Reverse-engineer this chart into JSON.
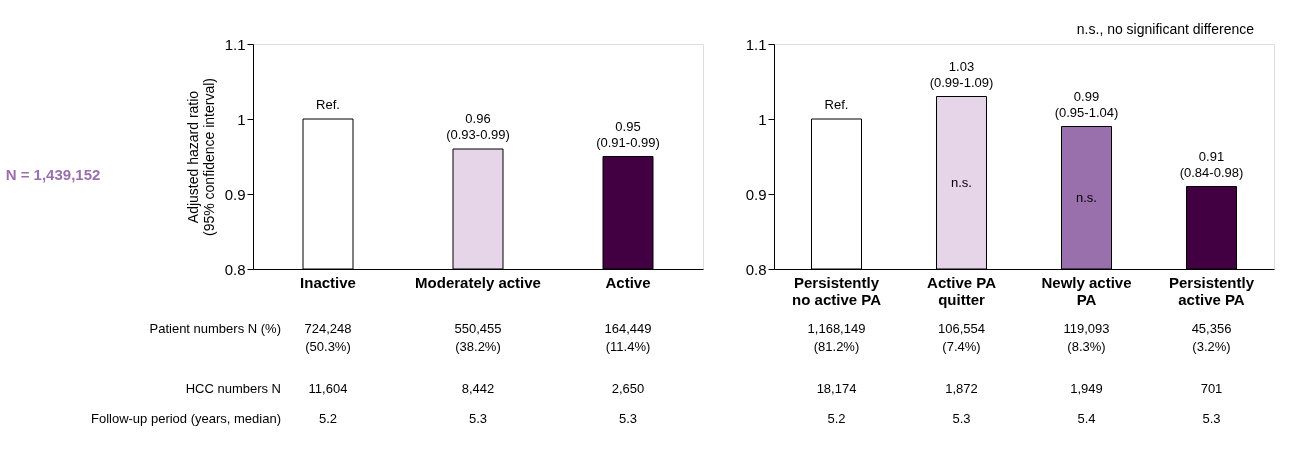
{
  "chart_data": [
    {
      "type": "bar",
      "ylabel": "Adjusted hazard ratio\n(95% confidence interval)",
      "categories": [
        "Inactive",
        "Moderately active",
        "Active"
      ],
      "values": [
        1,
        0.96,
        0.95
      ],
      "colors": [
        "#ffffff",
        "#e6d4e9",
        "#420042"
      ],
      "value_labels": [
        "Ref.",
        "0.96\n(0.93-0.99)",
        "0.95\n(0.91-0.99)"
      ],
      "ylim": [
        0.8,
        1.1
      ],
      "yticks": [
        0.8,
        0.9,
        1,
        1.1
      ],
      "grid": false,
      "annotations": [
        "N = 1,439,152",
        "Patient numbers N (%)",
        "HCC numbers N",
        "Follow-up period (years, median)",
        "724,248\n(50.3%)",
        "550,455\n(38.2%)",
        "164,449\n(11.4%)",
        "11,604",
        "8,442",
        "2,650",
        "5.2",
        "5.3",
        "5.3"
      ]
    },
    {
      "type": "bar",
      "categories": [
        "Persistently\nno active PA",
        "Active PA\nquitter",
        "Newly active\nPA",
        "Persistently\nactive PA"
      ],
      "values": [
        1,
        1.03,
        0.99,
        0.91
      ],
      "colors": [
        "#ffffff",
        "#e6d4e9",
        "#9a70ac",
        "#420042"
      ],
      "value_labels": [
        "Ref.",
        "1.03\n(0.99-1.09)",
        "0.99\n(0.95-1.04)",
        "0.91\n(0.84-0.98)"
      ],
      "ylim": [
        0.8,
        1.1
      ],
      "yticks": [
        0.8,
        0.9,
        1,
        1.1
      ],
      "grid": false,
      "annotations": [
        "n.s., no significant difference",
        "n.s.",
        "n.s.",
        "1,168,149\n(81.2%)",
        "106,554\n(7.4%)",
        "119,093\n(8.3%)",
        "45,356\n(3.2%)",
        "18,174",
        "1,872",
        "1,949",
        "701",
        "5.2",
        "5.3",
        "5.4",
        "5.3"
      ]
    }
  ]
}
